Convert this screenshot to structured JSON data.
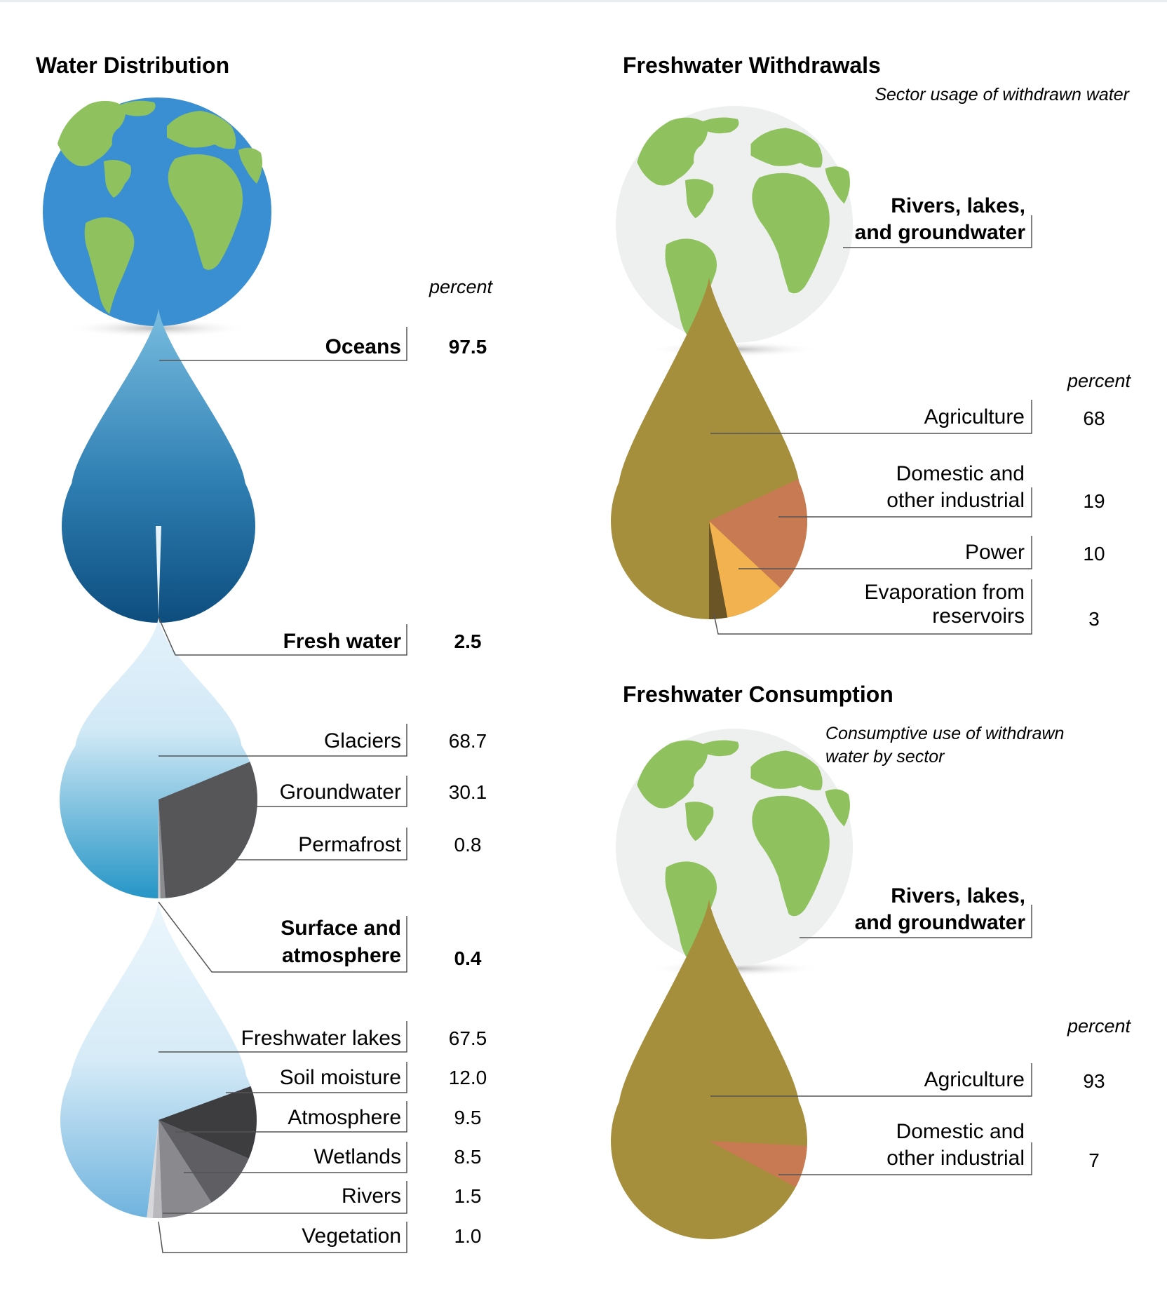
{
  "colors": {
    "ocean": "#3a8fd2",
    "land": "#8fc25e",
    "globe_gray": "#eef0ef",
    "drop_olive": "#a68f3c",
    "domestic": "#c87a52",
    "power": "#f1b24f",
    "evaporation": "#6b5426",
    "groundwater": "#565659",
    "leader": "#555555"
  },
  "distribution": {
    "title": "Water Distribution",
    "percent_label": "percent",
    "oceans": {
      "label": "Oceans",
      "value": "97.5"
    },
    "fresh": {
      "label": "Fresh water",
      "value": "2.5"
    },
    "surface": {
      "label_line1": "Surface and",
      "label_line2": "atmosphere",
      "value": "0.4"
    }
  },
  "withdrawals": {
    "title": "Freshwater Withdrawals",
    "subtitle": "Sector usage of withdrawn water",
    "source_line1": "Rivers, lakes,",
    "source_line2": "and groundwater",
    "percent_label": "percent",
    "labels": {
      "agri": "Agriculture",
      "dom1": "Domestic and",
      "dom2": "other industrial",
      "power": "Power",
      "evap1": "Evaporation from",
      "evap2": "reservoirs"
    },
    "values": {
      "agri": "68",
      "dom": "19",
      "power": "10",
      "evap": "3"
    }
  },
  "consumption": {
    "title": "Freshwater Consumption",
    "subtitle_line1": "Consumptive use of withdrawn",
    "subtitle_line2": "water by sector",
    "source_line1": "Rivers, lakes,",
    "source_line2": "and groundwater",
    "percent_label": "percent",
    "labels": {
      "agri": "Agriculture",
      "dom1": "Domestic and",
      "dom2": "other industrial"
    },
    "values": {
      "agri": "93",
      "dom": "7"
    }
  },
  "chart_data": [
    {
      "type": "pie",
      "categories": [
        "Oceans",
        "Fresh water"
      ],
      "values": [
        97.5,
        2.5
      ],
      "title": "Water Distribution",
      "unit": "percent"
    },
    {
      "type": "pie",
      "categories": [
        "Glaciers",
        "Groundwater",
        "Permafrost",
        "Surface and atmosphere"
      ],
      "values": [
        68.7,
        30.1,
        0.8,
        0.4
      ],
      "labels": [
        "Glaciers",
        "Groundwater",
        "Permafrost",
        "Surface and atmosphere"
      ],
      "unit": "percent"
    },
    {
      "type": "pie",
      "categories": [
        "Freshwater lakes",
        "Soil moisture",
        "Atmosphere",
        "Wetlands",
        "Rivers",
        "Vegetation"
      ],
      "values": [
        67.5,
        12.0,
        9.5,
        8.5,
        1.5,
        1.0
      ],
      "labels": [
        "67.5",
        "12.0",
        "9.5",
        "8.5",
        "1.5",
        "1.0"
      ],
      "unit": "percent"
    },
    {
      "type": "pie",
      "categories": [
        "Agriculture",
        "Domestic and other industrial",
        "Power",
        "Evaporation from reservoirs"
      ],
      "values": [
        68,
        19,
        10,
        3
      ],
      "title": "Freshwater Withdrawals",
      "unit": "percent"
    },
    {
      "type": "pie",
      "categories": [
        "Agriculture",
        "Domestic and other industrial"
      ],
      "values": [
        93,
        7
      ],
      "title": "Freshwater Consumption",
      "unit": "percent"
    }
  ]
}
